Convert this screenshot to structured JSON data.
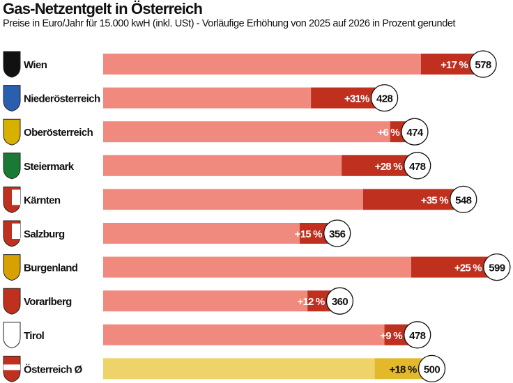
{
  "chart_data": {
    "type": "bar",
    "orientation": "horizontal",
    "title": "Gas-Netzentgelt in Österreich",
    "subtitle": "Preise in Euro/Jahr für 15.000 kwH (inkl. USt) - Vorläufige Erhöhung von 2025 auf 2026 in Prozent gerundet",
    "categories": [
      "Wien",
      "Niederösterreich",
      "Oberösterreich",
      "Steiermark",
      "Kärnten",
      "Salzburg",
      "Burgenland",
      "Vorarlberg",
      "Tirol",
      "Österreich Ø"
    ],
    "values": [
      578,
      428,
      474,
      478,
      548,
      356,
      599,
      360,
      478,
      500
    ],
    "increase_labels": [
      "+17 %",
      "+31%",
      "+6 %",
      "+28 %",
      "+35 %",
      "+15 %",
      "+25 %",
      "+12 %",
      "+9 %",
      "+18 %"
    ],
    "increase_pct": [
      17,
      31,
      6,
      28,
      35,
      15,
      25,
      12,
      9,
      18
    ],
    "colors": {
      "base": "#f08a7e",
      "increase": "#c0301f",
      "avg_base": "#edd36a",
      "avg_increase": "#e3b82a"
    },
    "grid": false
  }
}
